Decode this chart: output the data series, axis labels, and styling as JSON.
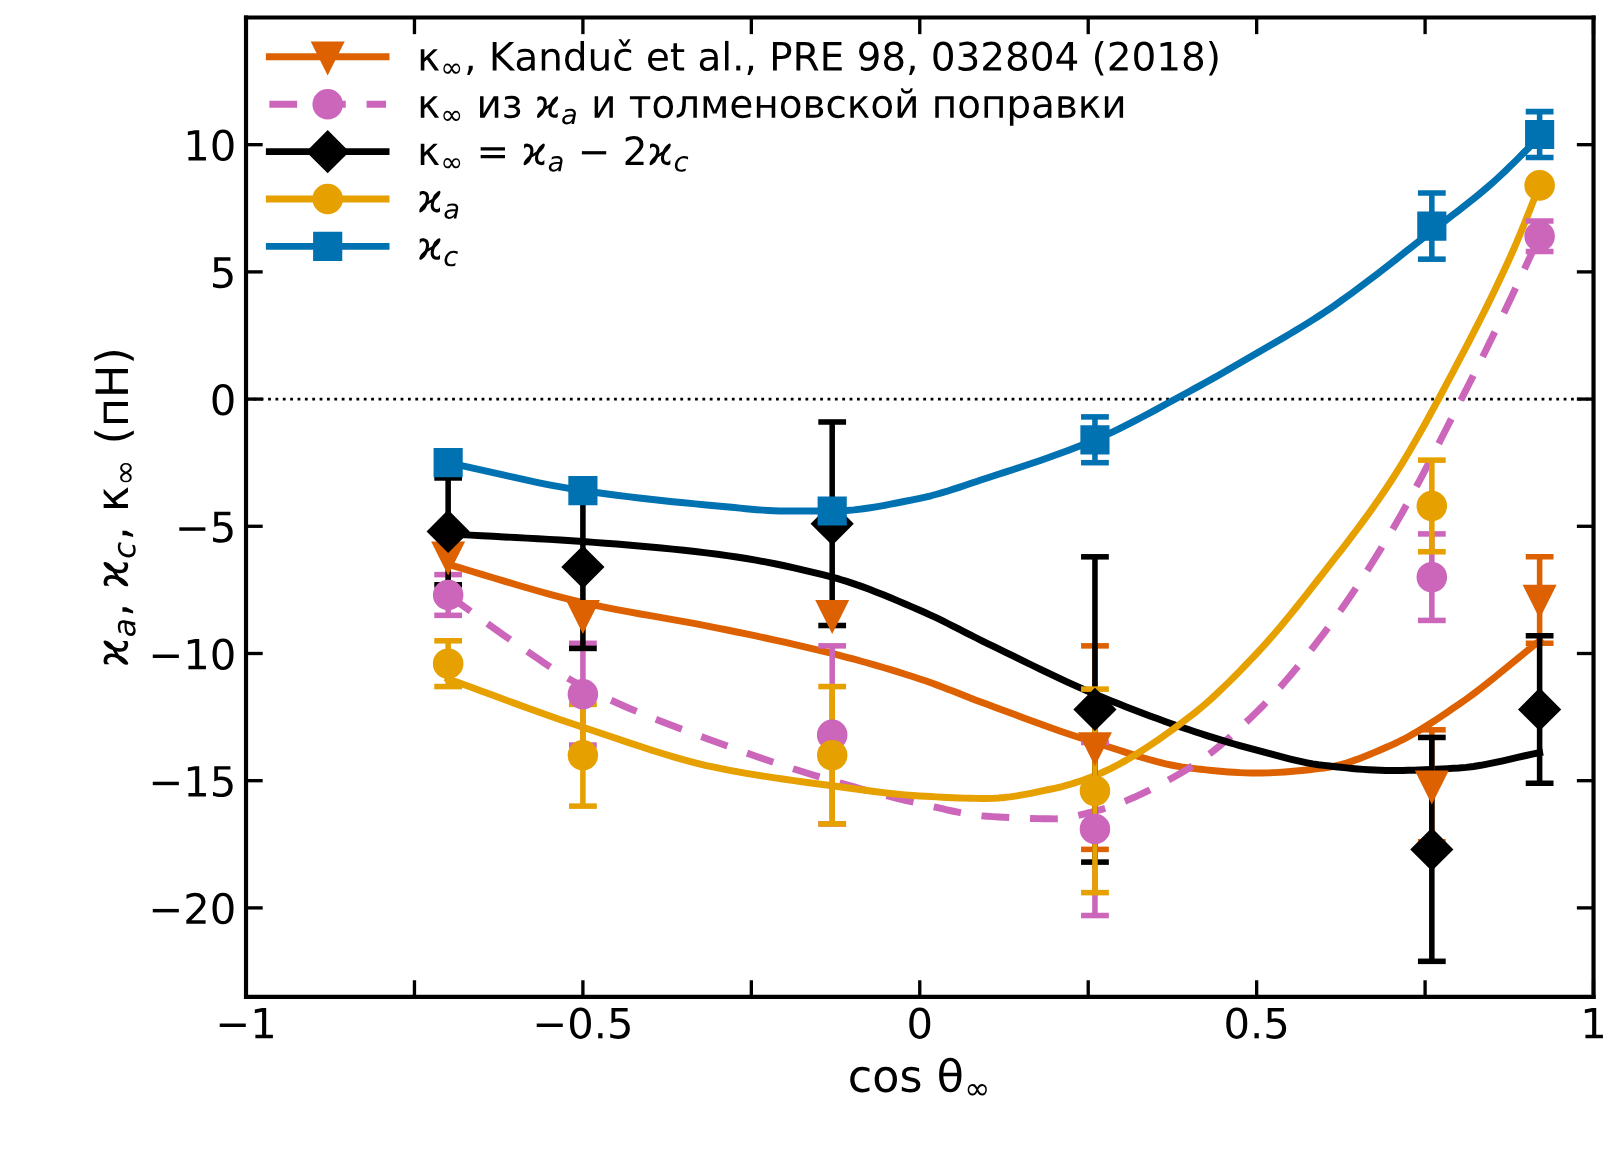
{
  "chart_data": {
    "type": "scatter",
    "xlabel": "cos θ$_{∞}$",
    "ylabel": "ϰ$_{a}$, ϰ$_{c}$, κ$_{∞}$ (пН)",
    "xlim": [
      -1,
      1
    ],
    "ylim": [
      -23.5,
      15
    ],
    "xticks": [
      -1,
      {
        "value": -0.75,
        "label": null
      },
      -0.5,
      {
        "value": -0.25,
        "label": null
      },
      0,
      {
        "value": 0.25,
        "label": null
      },
      0.5,
      {
        "value": 0.75,
        "label": null
      },
      1
    ],
    "yticks": [
      -20,
      -15,
      -10,
      -5,
      0,
      5,
      10
    ],
    "legend": "top left",
    "grid": false,
    "ref_lines": [
      {
        "axis": "y",
        "value": 0,
        "line_style": "dotted",
        "color": "#000000"
      }
    ],
    "series": [
      {
        "name": "κ$_{∞}$, Kanduč et al., PRE 98, 032804 (2018)",
        "color": "#dd6100",
        "marker": "triangle",
        "x": [
          -0.7,
          -0.5,
          -0.13,
          0.26,
          0.76,
          0.92
        ],
        "values": [
          -6.2,
          -8.5,
          -8.5,
          -13.7,
          -15.2,
          -7.9
        ],
        "errors": [
          null,
          null,
          null,
          4,
          2.2,
          1.7
        ]
      },
      {
        "name": "κ$_{∞}$ из ϰ$_{a}$ и толменовской поправки",
        "color": "#cc66bb",
        "marker": "circle",
        "x": [
          -0.7,
          -0.5,
          -0.13,
          0.26,
          0.76,
          0.92
        ],
        "values": [
          -7.7,
          -11.6,
          -13.2,
          -16.9,
          -7.0,
          6.4
        ],
        "errors": [
          0.8,
          2,
          3.5,
          3.4,
          1.7,
          0.6
        ]
      },
      {
        "name": "κ$_{∞}$ = ϰ$_{a}$ − 2ϰ$_{c}$",
        "color": "#000000",
        "marker": "diamond",
        "x": [
          -0.7,
          -0.5,
          -0.13,
          0.26,
          0.76,
          0.92
        ],
        "values": [
          -5.2,
          -6.6,
          -4.9,
          -12.2,
          -17.7,
          -12.2
        ],
        "errors": [
          2.1,
          3.2,
          4,
          6,
          4.4,
          2.9
        ]
      },
      {
        "name": "ϰ$_{a}$",
        "color": "#e6a000",
        "marker": "circle",
        "x": [
          -0.7,
          -0.5,
          -0.13,
          0.26,
          0.76,
          0.92
        ],
        "values": [
          -10.4,
          -14.0,
          -14.0,
          -15.4,
          -4.2,
          8.4
        ],
        "errors": [
          0.9,
          2,
          2.7,
          4,
          1.8,
          null
        ]
      },
      {
        "name": "ϰ$_{c}$",
        "color": "#0072b2",
        "marker": "square",
        "x": [
          -0.7,
          -0.5,
          -0.13,
          0.26,
          0.76,
          0.92
        ],
        "values": [
          -2.5,
          -3.6,
          -4.4,
          -1.6,
          6.8,
          10.4
        ],
        "errors": [
          null,
          null,
          null,
          0.9,
          1.3,
          0.9
        ]
      },
      {
        "type": "line",
        "color": "#dd6100",
        "line_style": "solid",
        "x": [
          -0.7,
          -0.5,
          -0.3,
          -0.13,
          0,
          0.1,
          0.26,
          0.4,
          0.5,
          0.6,
          0.7,
          0.8,
          0.92
        ],
        "values": [
          -6.5,
          -8,
          -9,
          -10,
          -11,
          -12,
          -13.5,
          -14.5,
          -14.7,
          -14.5,
          -13.6,
          -12,
          -9.5
        ]
      },
      {
        "type": "line",
        "color": "#cc66bb",
        "line_style": "dashed",
        "x": [
          -0.7,
          -0.6,
          -0.5,
          -0.3,
          -0.13,
          0,
          0.1,
          0.2,
          0.26,
          0.4,
          0.5,
          0.6,
          0.7,
          0.8,
          0.86,
          0.92
        ],
        "values": [
          -7.7,
          -9.6,
          -11.3,
          -13.5,
          -15.0,
          -15.9,
          -16.4,
          -16.5,
          -16.2,
          -14.5,
          -12.3,
          -9.2,
          -5.2,
          -0.2,
          3,
          6.4
        ]
      },
      {
        "type": "line",
        "color": "#000000",
        "line_style": "solid",
        "x": [
          -0.7,
          -0.5,
          -0.3,
          -0.13,
          0,
          0.1,
          0.26,
          0.4,
          0.5,
          0.6,
          0.7,
          0.8,
          0.92
        ],
        "values": [
          -5.3,
          -5.6,
          -6.1,
          -7.0,
          -8.3,
          -9.6,
          -11.6,
          -13,
          -13.8,
          -14.4,
          -14.6,
          -14.5,
          -13.9
        ]
      },
      {
        "type": "line",
        "color": "#e6a000",
        "line_style": "solid",
        "x": [
          -0.7,
          -0.5,
          -0.3,
          -0.13,
          0,
          0.1,
          0.2,
          0.26,
          0.4,
          0.5,
          0.6,
          0.7,
          0.8,
          0.88,
          0.92
        ],
        "values": [
          -11,
          -12.9,
          -14.5,
          -15.2,
          -15.6,
          -15.7,
          -15.3,
          -14.8,
          -12.5,
          -10,
          -6.8,
          -3.2,
          1.5,
          5.8,
          8.4
        ]
      },
      {
        "type": "line",
        "color": "#0072b2",
        "line_style": "solid",
        "x": [
          -0.7,
          -0.5,
          -0.3,
          -0.2,
          -0.13,
          0,
          0.1,
          0.26,
          0.4,
          0.5,
          0.6,
          0.76,
          0.85,
          0.92
        ],
        "values": [
          -2.5,
          -3.6,
          -4.2,
          -4.4,
          -4.4,
          -3.9,
          -3.1,
          -1.6,
          0.3,
          1.8,
          3.4,
          6.6,
          8.5,
          10.3
        ]
      }
    ]
  }
}
